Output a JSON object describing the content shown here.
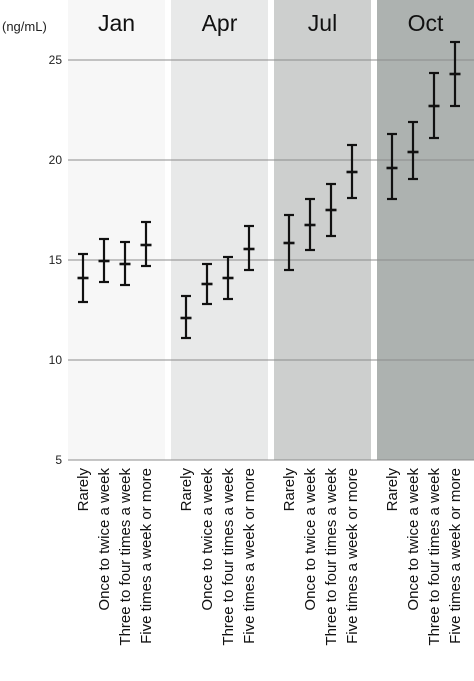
{
  "chart_data": {
    "type": "errorbar",
    "title": "",
    "ylabel": "(ng/mL)",
    "xlabel": "",
    "ylim": [
      5,
      26.5
    ],
    "yticks": [
      5,
      10,
      15,
      20,
      25
    ],
    "grid": true,
    "categories": [
      "Rarely",
      "Once to twice a week",
      "Three to four times a week",
      "Five times a week or more"
    ],
    "panels": [
      {
        "name": "Jan",
        "color": "#f7f7f7",
        "points": [
          {
            "category": "Rarely",
            "mean": 14.1,
            "lower": 12.9,
            "upper": 15.3
          },
          {
            "category": "Once to twice a week",
            "mean": 14.95,
            "lower": 13.9,
            "upper": 16.05
          },
          {
            "category": "Three to four times a week",
            "mean": 14.8,
            "lower": 13.75,
            "upper": 15.9
          },
          {
            "category": "Five times a week or more",
            "mean": 15.75,
            "lower": 14.7,
            "upper": 16.9
          }
        ]
      },
      {
        "name": "Apr",
        "color": "#e8e9e9",
        "points": [
          {
            "category": "Rarely",
            "mean": 12.1,
            "lower": 11.1,
            "upper": 13.2
          },
          {
            "category": "Once to twice a week",
            "mean": 13.8,
            "lower": 12.8,
            "upper": 14.8
          },
          {
            "category": "Three to four times a week",
            "mean": 14.1,
            "lower": 13.05,
            "upper": 15.15
          },
          {
            "category": "Five times a week or more",
            "mean": 15.55,
            "lower": 14.5,
            "upper": 16.7
          }
        ]
      },
      {
        "name": "Jul",
        "color": "#cdcfce",
        "points": [
          {
            "category": "Rarely",
            "mean": 15.85,
            "lower": 14.5,
            "upper": 17.25
          },
          {
            "category": "Once to twice a week",
            "mean": 16.75,
            "lower": 15.5,
            "upper": 18.05
          },
          {
            "category": "Three to four times a week",
            "mean": 17.5,
            "lower": 16.2,
            "upper": 18.8
          },
          {
            "category": "Five times a week or more",
            "mean": 19.4,
            "lower": 18.1,
            "upper": 20.75
          }
        ]
      },
      {
        "name": "Oct",
        "color": "#adb2b0",
        "points": [
          {
            "category": "Rarely",
            "mean": 19.6,
            "lower": 18.05,
            "upper": 21.3
          },
          {
            "category": "Once to twice a week",
            "mean": 20.4,
            "lower": 19.05,
            "upper": 21.9
          },
          {
            "category": "Three to four times a week",
            "mean": 22.7,
            "lower": 21.1,
            "upper": 24.35
          },
          {
            "category": "Five times a week or more",
            "mean": 24.3,
            "lower": 22.7,
            "upper": 25.9
          }
        ]
      }
    ]
  }
}
